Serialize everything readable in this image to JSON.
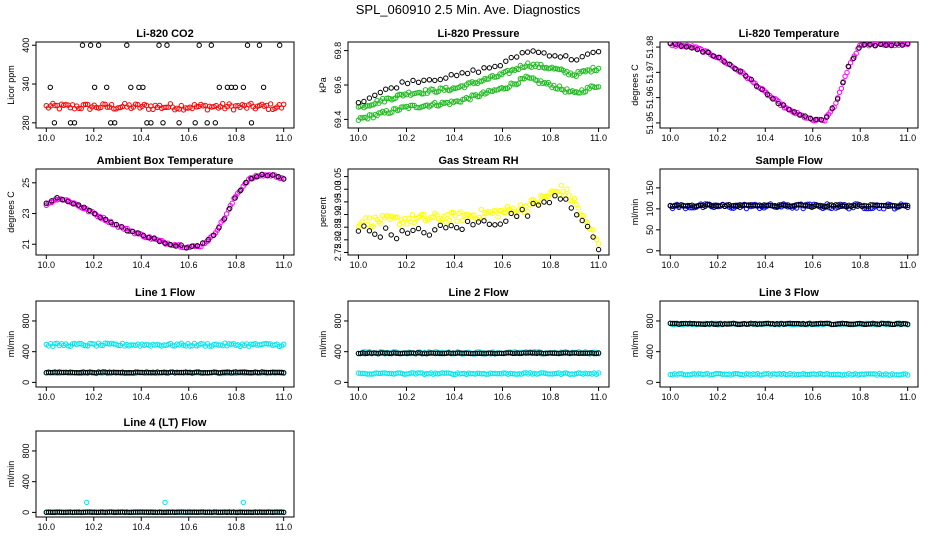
{
  "title": "SPL_060910  2.5 Min. Ave. Diagnostics",
  "colors": {
    "black": "#000000",
    "red": "#ff0000",
    "green": "#22bb22",
    "magenta": "#ff00ff",
    "yellow": "#ffff00",
    "blue": "#0000ff",
    "cyan": "#00e5ee"
  },
  "chart_data": [
    {
      "id": "co2",
      "type": "scatter",
      "title": "Li-820 CO2",
      "ylabel": "Licor ppm",
      "xlim": [
        10.0,
        11.0
      ],
      "ylim": [
        272,
        405
      ],
      "xticks": [
        "10.0",
        "10.2",
        "10.4",
        "10.6",
        "10.8",
        "11.0"
      ],
      "xtick_values": [
        10.0,
        10.2,
        10.4,
        10.6,
        10.8,
        11.0
      ],
      "yticks": [
        "280",
        "340",
        "400"
      ],
      "ytick_values": [
        280,
        340,
        400
      ],
      "series": [
        {
          "color": "#ff0000",
          "pattern": "band",
          "values": [
            300,
            310
          ]
        },
        {
          "color": "#000000",
          "pattern": "levels",
          "values": [
            280,
            335,
            400
          ]
        }
      ]
    },
    {
      "id": "pressure",
      "type": "scatter",
      "title": "Li-820 Pressure",
      "ylabel": "kPa",
      "xlim": [
        10.0,
        11.0
      ],
      "ylim": [
        69.35,
        69.85
      ],
      "xticks": [
        "10.0",
        "10.2",
        "10.4",
        "10.6",
        "10.8",
        "11.0"
      ],
      "xtick_values": [
        10.0,
        10.2,
        10.4,
        10.6,
        10.8,
        11.0
      ],
      "yticks": [
        "69.4",
        "69.6",
        "69.8"
      ],
      "ytick_values": [
        69.4,
        69.6,
        69.8
      ],
      "series": [
        {
          "color": "#22bb22",
          "pattern": "trend",
          "x": [
            10.0,
            10.2,
            10.4,
            10.6,
            10.7,
            10.8,
            10.9,
            11.0
          ],
          "values": [
            69.4,
            69.47,
            69.5,
            69.58,
            69.64,
            69.6,
            69.55,
            69.6
          ]
        },
        {
          "color": "#22bb22",
          "pattern": "trend",
          "x": [
            10.0,
            10.2,
            10.4,
            10.6,
            10.7,
            10.8,
            10.9,
            11.0
          ],
          "values": [
            69.47,
            69.55,
            69.58,
            69.66,
            69.72,
            69.7,
            69.66,
            69.7
          ]
        },
        {
          "color": "#000000",
          "pattern": "trend",
          "x": [
            10.0,
            10.2,
            10.4,
            10.6,
            10.7,
            10.8,
            10.9,
            11.0
          ],
          "values": [
            69.5,
            69.62,
            69.65,
            69.72,
            69.8,
            69.78,
            69.75,
            69.79
          ]
        }
      ]
    },
    {
      "id": "licor-temp",
      "type": "scatter",
      "title": "Li-820 Temperature",
      "ylabel": "degrees C",
      "xlim": [
        10.0,
        11.0
      ],
      "ylim": [
        51.948,
        51.982
      ],
      "xticks": [
        "10.0",
        "10.2",
        "10.4",
        "10.6",
        "10.8",
        "11.0"
      ],
      "xtick_values": [
        10.0,
        10.2,
        10.4,
        10.6,
        10.8,
        11.0
      ],
      "yticks": [
        "51.95",
        "51.96",
        "51.97",
        "51.98"
      ],
      "ytick_values": [
        51.95,
        51.96,
        51.97,
        51.98
      ],
      "series": [
        {
          "color": "#ff00ff",
          "pattern": "trend",
          "x": [
            10.0,
            10.1,
            10.2,
            10.3,
            10.4,
            10.5,
            10.6,
            10.65,
            10.7,
            10.75,
            10.8,
            10.9,
            11.0
          ],
          "values": [
            51.981,
            51.98,
            51.976,
            51.97,
            51.962,
            51.955,
            51.951,
            51.951,
            51.958,
            51.972,
            51.981,
            51.981,
            51.981
          ]
        },
        {
          "color": "#000000",
          "pattern": "trend",
          "x": [
            10.0,
            10.1,
            10.2,
            10.3,
            10.4,
            10.5,
            10.6,
            10.65,
            10.7,
            10.75,
            10.8,
            10.9,
            11.0
          ],
          "values": [
            51.981,
            51.98,
            51.976,
            51.97,
            51.962,
            51.955,
            51.951,
            51.951,
            51.958,
            51.972,
            51.981,
            51.981,
            51.981
          ]
        }
      ]
    },
    {
      "id": "ambient-temp",
      "type": "scatter",
      "title": "Ambient Box Temperature",
      "ylabel": "degrees C",
      "xlim": [
        10.0,
        11.0
      ],
      "ylim": [
        20.3,
        25.9
      ],
      "xticks": [
        "10.0",
        "10.2",
        "10.4",
        "10.6",
        "10.8",
        "11.0"
      ],
      "xtick_values": [
        10.0,
        10.2,
        10.4,
        10.6,
        10.8,
        11.0
      ],
      "yticks": [
        "21",
        "23",
        "25"
      ],
      "ytick_values": [
        21,
        23,
        25
      ],
      "series": [
        {
          "color": "#ff00ff",
          "pattern": "trend",
          "x": [
            10.0,
            10.05,
            10.1,
            10.2,
            10.3,
            10.4,
            10.5,
            10.6,
            10.65,
            10.7,
            10.75,
            10.8,
            10.85,
            10.9,
            10.95,
            11.0
          ],
          "values": [
            23.6,
            24.0,
            23.8,
            23.0,
            22.2,
            21.6,
            21.1,
            20.8,
            20.9,
            21.5,
            22.7,
            24.2,
            25.2,
            25.5,
            25.5,
            25.3
          ]
        },
        {
          "color": "#000000",
          "pattern": "trend",
          "x": [
            10.0,
            10.05,
            10.1,
            10.2,
            10.3,
            10.4,
            10.5,
            10.6,
            10.65,
            10.7,
            10.75,
            10.8,
            10.85,
            10.9,
            10.95,
            11.0
          ],
          "values": [
            23.6,
            24.0,
            23.8,
            23.0,
            22.2,
            21.6,
            21.1,
            20.8,
            20.9,
            21.5,
            22.7,
            24.2,
            25.2,
            25.5,
            25.5,
            25.3
          ]
        }
      ]
    },
    {
      "id": "rh",
      "type": "scatter",
      "title": "Gas Stream RH",
      "ylabel": "percent",
      "xlim": [
        10.0,
        11.0
      ],
      "ylim": [
        2.74,
        3.08
      ],
      "xticks": [
        "10.0",
        "10.2",
        "10.4",
        "10.6",
        "10.8",
        "11.0"
      ],
      "xtick_values": [
        10.0,
        10.2,
        10.4,
        10.6,
        10.8,
        11.0
      ],
      "yticks": [
        "2.75",
        "2.80",
        "2.85",
        "2.90",
        "2.95",
        "3.00",
        "3.05"
      ],
      "ytick_values": [
        2.75,
        2.8,
        2.85,
        2.9,
        2.95,
        3.0,
        3.05
      ],
      "series": [
        {
          "color": "#ffff00",
          "pattern": "trend",
          "x": [
            10.0,
            10.2,
            10.4,
            10.6,
            10.7,
            10.8,
            10.85,
            10.9,
            10.95,
            11.0
          ],
          "values": [
            2.87,
            2.88,
            2.89,
            2.91,
            2.93,
            2.98,
            3.0,
            2.95,
            2.86,
            2.8
          ]
        },
        {
          "color": "#000000",
          "pattern": "trend",
          "x": [
            10.0,
            10.2,
            10.4,
            10.6,
            10.7,
            10.8,
            10.85,
            10.9,
            10.95,
            11.0
          ],
          "values": [
            2.84,
            2.82,
            2.85,
            2.88,
            2.91,
            2.97,
            2.98,
            2.93,
            2.84,
            2.77
          ]
        }
      ]
    },
    {
      "id": "sample-flow",
      "type": "scatter",
      "title": "Sample Flow",
      "ylabel": "ml/min",
      "xlim": [
        10.0,
        11.0
      ],
      "ylim": [
        -10,
        195
      ],
      "xticks": [
        "10.0",
        "10.2",
        "10.4",
        "10.6",
        "10.8",
        "11.0"
      ],
      "xtick_values": [
        10.0,
        10.2,
        10.4,
        10.6,
        10.8,
        11.0
      ],
      "yticks": [
        "0",
        "50",
        "100",
        "150"
      ],
      "ytick_values": [
        0,
        50,
        100,
        150
      ],
      "series": [
        {
          "color": "#0000ff",
          "pattern": "band",
          "values": [
            100,
            112
          ]
        },
        {
          "color": "#000000",
          "pattern": "band",
          "values": [
            106,
            110
          ]
        }
      ]
    },
    {
      "id": "line1-flow",
      "type": "scatter",
      "title": "Line 1 Flow",
      "ylabel": "ml/min",
      "xlim": [
        10.0,
        11.0
      ],
      "ylim": [
        -60,
        1060
      ],
      "xticks": [
        "10.0",
        "10.2",
        "10.4",
        "10.6",
        "10.8",
        "11.0"
      ],
      "xtick_values": [
        10.0,
        10.2,
        10.4,
        10.6,
        10.8,
        11.0
      ],
      "yticks": [
        "0",
        "400",
        "800"
      ],
      "ytick_values": [
        0,
        400,
        800
      ],
      "series": [
        {
          "color": "#00e5ee",
          "pattern": "band",
          "values": [
            470,
            510
          ]
        },
        {
          "color": "#00e5ee",
          "pattern": "band",
          "values": [
            115,
            130
          ]
        },
        {
          "color": "#000000",
          "pattern": "band",
          "values": [
            125,
            135
          ]
        }
      ]
    },
    {
      "id": "line2-flow",
      "type": "scatter",
      "title": "Line 2 Flow",
      "ylabel": "ml/min",
      "xlim": [
        10.0,
        11.0
      ],
      "ylim": [
        -60,
        1060
      ],
      "xticks": [
        "10.0",
        "10.2",
        "10.4",
        "10.6",
        "10.8",
        "11.0"
      ],
      "xtick_values": [
        10.0,
        10.2,
        10.4,
        10.6,
        10.8,
        11.0
      ],
      "yticks": [
        "0",
        "400",
        "800"
      ],
      "ytick_values": [
        0,
        400,
        800
      ],
      "series": [
        {
          "color": "#00e5ee",
          "pattern": "band",
          "values": [
            370,
            400
          ]
        },
        {
          "color": "#000000",
          "pattern": "band",
          "values": [
            375,
            385
          ]
        },
        {
          "color": "#00e5ee",
          "pattern": "band",
          "values": [
            105,
            125
          ]
        }
      ]
    },
    {
      "id": "line3-flow",
      "type": "scatter",
      "title": "Line 3 Flow",
      "ylabel": "ml/min",
      "xlim": [
        10.0,
        11.0
      ],
      "ylim": [
        -60,
        1060
      ],
      "xticks": [
        "10.0",
        "10.2",
        "10.4",
        "10.6",
        "10.8",
        "11.0"
      ],
      "xtick_values": [
        10.0,
        10.2,
        10.4,
        10.6,
        10.8,
        11.0
      ],
      "yticks": [
        "0",
        "400",
        "800"
      ],
      "ytick_values": [
        0,
        400,
        800
      ],
      "series": [
        {
          "color": "#00e5ee",
          "pattern": "band",
          "values": [
            750,
            770
          ]
        },
        {
          "color": "#000000",
          "pattern": "band",
          "values": [
            755,
            770
          ]
        },
        {
          "color": "#00e5ee",
          "pattern": "band",
          "values": [
            95,
            115
          ]
        }
      ]
    },
    {
      "id": "line4-flow",
      "type": "scatter",
      "title": "Line 4 (LT) Flow",
      "ylabel": "ml/min",
      "xlim": [
        10.0,
        11.0
      ],
      "ylim": [
        -60,
        1060
      ],
      "xticks": [
        "10.0",
        "10.2",
        "10.4",
        "10.6",
        "10.8",
        "11.0"
      ],
      "xtick_values": [
        10.0,
        10.2,
        10.4,
        10.6,
        10.8,
        11.0
      ],
      "yticks": [
        "0",
        "400",
        "800"
      ],
      "ytick_values": [
        0,
        400,
        800
      ],
      "series": [
        {
          "color": "#00e5ee",
          "pattern": "band",
          "values": [
            0,
            6
          ]
        },
        {
          "color": "#000000",
          "pattern": "band",
          "values": [
            0,
            4
          ]
        },
        {
          "color": "#00e5ee",
          "pattern": "spikes",
          "x": [
            10.17,
            10.5,
            10.83
          ],
          "values": [
            130,
            130,
            130
          ]
        }
      ]
    }
  ]
}
